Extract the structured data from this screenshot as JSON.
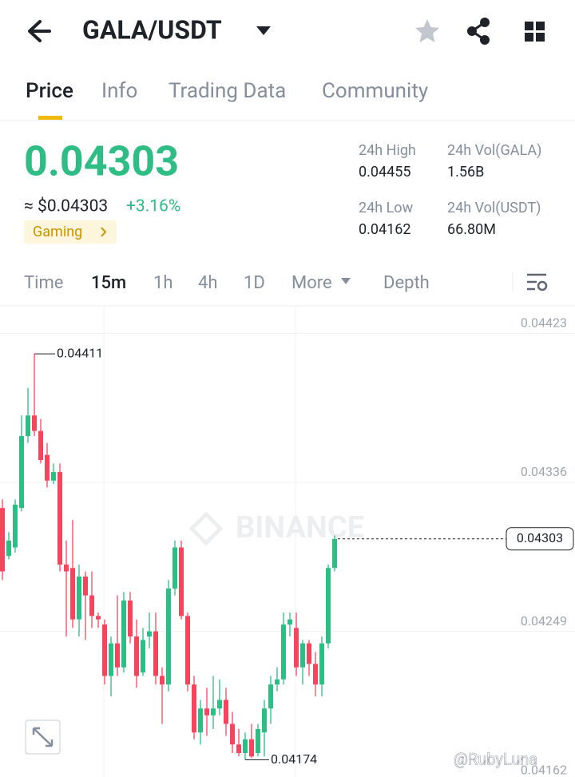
{
  "header": {
    "pair": "GALA/USDT"
  },
  "tabs": {
    "items": [
      "Price",
      "Info",
      "Trading Data",
      "Community"
    ],
    "active": 0
  },
  "price": {
    "last": "0.04303",
    "usd": "≈ $0.04303",
    "change": "+3.16%",
    "tag": "Gaming"
  },
  "stats": [
    {
      "label": "24h High",
      "value": "0.04455"
    },
    {
      "label": "24h Vol(GALA)",
      "value": "1.56B"
    },
    {
      "label": "24h Low",
      "value": "0.04162"
    },
    {
      "label": "24h Vol(USDT)",
      "value": "66.80M"
    }
  ],
  "intervals": {
    "items": [
      "Time",
      "15m",
      "1h",
      "4h",
      "1D",
      "More",
      "Depth"
    ],
    "active": 1
  },
  "watermarks": [
    "BINANCE",
    "@RubyLuna"
  ],
  "chart_data": {
    "type": "candlestick",
    "up_color": "#2ebd85",
    "down_color": "#f6465d",
    "ylim": [
      0.04164,
      0.04439
    ],
    "yticks": [
      0.04423,
      0.04336,
      0.04249,
      0.04162
    ],
    "grid": true,
    "open": [
      0.04321,
      0.04293,
      0.04298,
      0.04321,
      0.04363,
      0.04375,
      0.04366,
      0.04352,
      0.04337,
      0.04342,
      0.04288,
      0.04286,
      0.04256,
      0.04281,
      0.0427,
      0.04258,
      0.04253,
      0.04223,
      0.04242,
      0.04228,
      0.04267,
      0.04246,
      0.04225,
      0.04246,
      0.04249,
      0.04223,
      0.04218,
      0.04274,
      0.04298,
      0.04258,
      0.04218,
      0.0419,
      0.04204,
      0.042,
      0.04204,
      0.04209,
      0.04195,
      0.04183,
      0.04178,
      0.04186,
      0.04178,
      0.0419,
      0.04204,
      0.04218,
      0.04221,
      0.04253,
      0.04251,
      0.04228,
      0.04242,
      0.0423,
      0.04218,
      0.04242,
      0.04286
    ],
    "high": [
      0.04326,
      0.04307,
      0.04326,
      0.04375,
      0.04391,
      0.04411,
      0.04373,
      0.04359,
      0.04347,
      0.04347,
      0.04302,
      0.04314,
      0.04288,
      0.04284,
      0.04284,
      0.0426,
      0.04256,
      0.04246,
      0.0427,
      0.04272,
      0.04272,
      0.04256,
      0.04251,
      0.0426,
      0.0426,
      0.04228,
      0.04279,
      0.04302,
      0.04302,
      0.0426,
      0.04223,
      0.04209,
      0.04216,
      0.04223,
      0.04221,
      0.04216,
      0.04202,
      0.04192,
      0.0419,
      0.04195,
      0.04195,
      0.04209,
      0.04223,
      0.04228,
      0.0426,
      0.0426,
      0.0426,
      0.04244,
      0.04244,
      0.04237,
      0.04246,
      0.04288,
      0.04305
    ],
    "low": [
      0.04279,
      0.04291,
      0.04295,
      0.04319,
      0.04359,
      0.04363,
      0.04347,
      0.04333,
      0.04335,
      0.04284,
      0.04246,
      0.04251,
      0.04246,
      0.04244,
      0.04251,
      0.04251,
      0.04218,
      0.04211,
      0.04223,
      0.04225,
      0.04242,
      0.04216,
      0.04223,
      0.04239,
      0.04218,
      0.04195,
      0.04214,
      0.0427,
      0.04256,
      0.04214,
      0.04186,
      0.04183,
      0.04188,
      0.04192,
      0.042,
      0.04188,
      0.04178,
      0.04176,
      0.04174,
      0.04175,
      0.04176,
      0.04176,
      0.04195,
      0.04214,
      0.04218,
      0.04246,
      0.04223,
      0.04218,
      0.04223,
      0.04211,
      0.04211,
      0.04239,
      0.04284
    ],
    "close": [
      0.04284,
      0.04302,
      0.04323,
      0.04363,
      0.04375,
      0.04366,
      0.04349,
      0.04337,
      0.04342,
      0.04288,
      0.04284,
      0.04256,
      0.04281,
      0.0427,
      0.04258,
      0.04256,
      0.04223,
      0.04242,
      0.04228,
      0.04267,
      0.04246,
      0.04223,
      0.04244,
      0.04249,
      0.04223,
      0.04218,
      0.04274,
      0.04298,
      0.04258,
      0.04218,
      0.0419,
      0.04204,
      0.042,
      0.04204,
      0.04209,
      0.04195,
      0.04183,
      0.04178,
      0.04186,
      0.04176,
      0.04192,
      0.04204,
      0.04218,
      0.04221,
      0.04253,
      0.04256,
      0.04228,
      0.04242,
      0.0423,
      0.04218,
      0.04242,
      0.04286,
      0.04303
    ]
  }
}
